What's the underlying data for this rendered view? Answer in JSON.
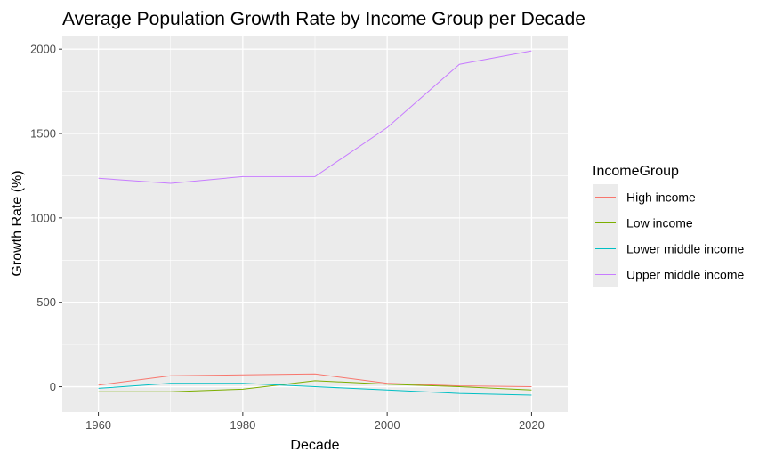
{
  "chart_data": {
    "type": "line",
    "title": "Average Population Growth Rate by Income Group per Decade",
    "xlabel": "Decade",
    "ylabel": "Growth Rate (%)",
    "x": [
      1960,
      1970,
      1980,
      1990,
      2000,
      2010,
      2020
    ],
    "xlim": [
      1955,
      2025
    ],
    "ylim": [
      -150,
      2080
    ],
    "x_ticks": [
      1960,
      1980,
      2000,
      2020
    ],
    "y_ticks": [
      0,
      500,
      1000,
      1500,
      2000
    ],
    "x_tick_labels": [
      "1960",
      "1980",
      "2000",
      "2020"
    ],
    "y_tick_labels": [
      "0",
      "500",
      "1000",
      "1500",
      "2000"
    ],
    "grid": true,
    "legend_title": "IncomeGroup",
    "legend_position": "right",
    "series": [
      {
        "name": "High income",
        "color": "#F8766D",
        "values": [
          10,
          65,
          70,
          75,
          20,
          5,
          0
        ]
      },
      {
        "name": "Low income",
        "color": "#7CAE00",
        "values": [
          -30,
          -30,
          -15,
          35,
          15,
          0,
          -20
        ]
      },
      {
        "name": "Lower middle income",
        "color": "#00BFC4",
        "values": [
          -10,
          20,
          20,
          0,
          -20,
          -40,
          -50
        ]
      },
      {
        "name": "Upper middle income",
        "color": "#C77CFF",
        "values": [
          1235,
          1205,
          1245,
          1245,
          1535,
          1910,
          1990
        ]
      }
    ]
  }
}
